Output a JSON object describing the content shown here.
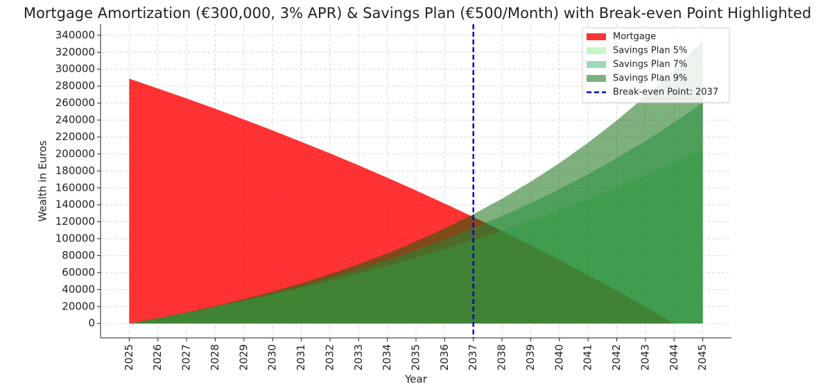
{
  "chart_data": {
    "type": "area",
    "title": "Mortgage Amortization (€300,000, 3% APR) & Savings Plan (€500/Month) with Break-even Point Highlighted",
    "x_label": "Year",
    "y_label": "Wealth in Euros",
    "x": [
      2025,
      2026,
      2027,
      2028,
      2029,
      2030,
      2031,
      2032,
      2033,
      2034,
      2035,
      2036,
      2037,
      2038,
      2039,
      2040,
      2041,
      2042,
      2043,
      2044,
      2045
    ],
    "series": [
      {
        "name": "Mortgage",
        "color": "#ff0000",
        "values": [
          288800,
          277300,
          265500,
          253300,
          240700,
          227800,
          214400,
          200700,
          186600,
          172000,
          157000,
          141500,
          125600,
          109200,
          92300,
          74900,
          57000,
          38600,
          19600,
          0,
          0
        ]
      },
      {
        "name": "Savings Plan 5%",
        "color": "#90ee90",
        "values": [
          0,
          6100,
          12600,
          19400,
          26500,
          34000,
          41900,
          50200,
          58900,
          68000,
          77600,
          87800,
          98400,
          109600,
          121300,
          133600,
          146600,
          160300,
          174600,
          189700,
          205500
        ]
      },
      {
        "name": "Savings Plan 7%",
        "color": "#3cb371",
        "values": [
          0,
          6200,
          12800,
          20000,
          27600,
          35800,
          44600,
          54000,
          64100,
          74900,
          86500,
          99000,
          112300,
          126700,
          142000,
          158500,
          176100,
          195100,
          215400,
          237100,
          260500
        ]
      },
      {
        "name": "Savings Plan 9%",
        "color": "#006400",
        "values": [
          0,
          6300,
          13100,
          20600,
          28800,
          37700,
          47500,
          58200,
          69900,
          82700,
          96800,
          112100,
          128900,
          147200,
          167300,
          189200,
          213200,
          239500,
          268200,
          299600,
          333900
        ]
      }
    ],
    "break_even": {
      "x": 2037,
      "label": "Break-even Point: 2037",
      "color": "#0000cd"
    },
    "xlim": [
      2024,
      2046
    ],
    "xticks": [
      2025,
      2026,
      2027,
      2028,
      2029,
      2030,
      2031,
      2032,
      2033,
      2034,
      2035,
      2036,
      2037,
      2038,
      2039,
      2040,
      2041,
      2042,
      2043,
      2044,
      2045
    ],
    "ylim": [
      -17000,
      353000
    ],
    "yticks": [
      0,
      20000,
      40000,
      60000,
      80000,
      100000,
      120000,
      140000,
      160000,
      180000,
      200000,
      220000,
      240000,
      260000,
      280000,
      300000,
      320000,
      340000
    ],
    "grid": true,
    "legend": "upper right"
  }
}
